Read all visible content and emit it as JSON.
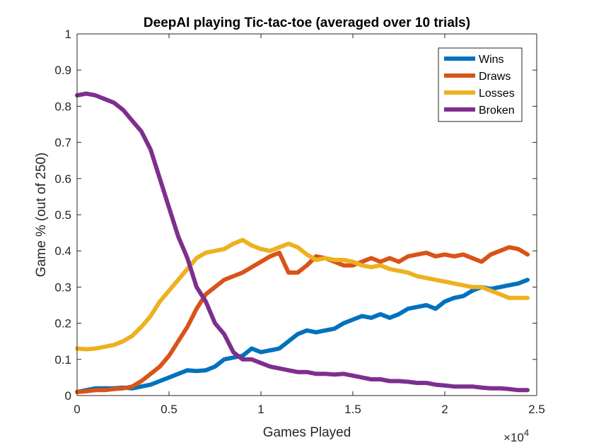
{
  "chart_data": {
    "type": "line",
    "title": "DeepAI playing Tic-tac-toe (averaged over 10 trials)",
    "xlabel": "Games Played",
    "ylabel": "Game % (out of 250)",
    "x_exponent_label": "×10",
    "x_exponent_power": "4",
    "xlim": [
      0,
      25000
    ],
    "ylim": [
      0,
      1
    ],
    "xticks": [
      0,
      5000,
      10000,
      15000,
      20000,
      25000
    ],
    "xtick_labels": [
      "0",
      "0.5",
      "1",
      "1.5",
      "2",
      "2.5"
    ],
    "yticks": [
      0,
      0.1,
      0.2,
      0.3,
      0.4,
      0.5,
      0.6,
      0.7,
      0.8,
      0.9,
      1
    ],
    "ytick_labels": [
      "0",
      "0.1",
      "0.2",
      "0.3",
      "0.4",
      "0.5",
      "0.6",
      "0.7",
      "0.8",
      "0.9",
      "1"
    ],
    "grid": false,
    "legend_position": "top-right",
    "x": [
      0,
      500,
      1000,
      1500,
      2000,
      2500,
      3000,
      3500,
      4000,
      4500,
      5000,
      5500,
      6000,
      6500,
      7000,
      7500,
      8000,
      8500,
      9000,
      9500,
      10000,
      10500,
      11000,
      11500,
      12000,
      12500,
      13000,
      13500,
      14000,
      14500,
      15000,
      15500,
      16000,
      16500,
      17000,
      17500,
      18000,
      18500,
      19000,
      19500,
      20000,
      20500,
      21000,
      21500,
      22000,
      22500,
      23000,
      23500,
      24000,
      24500
    ],
    "series": [
      {
        "name": "Wins",
        "color": "#0072BD",
        "values": [
          0.01,
          0.015,
          0.02,
          0.02,
          0.02,
          0.022,
          0.02,
          0.025,
          0.03,
          0.04,
          0.05,
          0.06,
          0.07,
          0.068,
          0.07,
          0.08,
          0.1,
          0.105,
          0.11,
          0.13,
          0.12,
          0.125,
          0.13,
          0.15,
          0.17,
          0.18,
          0.175,
          0.18,
          0.185,
          0.2,
          0.21,
          0.22,
          0.215,
          0.225,
          0.215,
          0.225,
          0.24,
          0.245,
          0.25,
          0.24,
          0.26,
          0.27,
          0.275,
          0.29,
          0.3,
          0.295,
          0.3,
          0.305,
          0.31,
          0.32
        ]
      },
      {
        "name": "Draws",
        "color": "#D95319",
        "values": [
          0.01,
          0.012,
          0.015,
          0.015,
          0.018,
          0.02,
          0.025,
          0.04,
          0.06,
          0.08,
          0.11,
          0.15,
          0.19,
          0.24,
          0.28,
          0.3,
          0.32,
          0.33,
          0.34,
          0.355,
          0.37,
          0.385,
          0.395,
          0.34,
          0.34,
          0.36,
          0.385,
          0.38,
          0.37,
          0.36,
          0.36,
          0.37,
          0.38,
          0.37,
          0.38,
          0.37,
          0.385,
          0.39,
          0.395,
          0.385,
          0.39,
          0.385,
          0.39,
          0.38,
          0.37,
          0.39,
          0.4,
          0.41,
          0.405,
          0.39
        ]
      },
      {
        "name": "Losses",
        "color": "#EDB120",
        "values": [
          0.13,
          0.128,
          0.13,
          0.135,
          0.14,
          0.15,
          0.165,
          0.19,
          0.22,
          0.26,
          0.29,
          0.32,
          0.35,
          0.38,
          0.395,
          0.4,
          0.405,
          0.42,
          0.43,
          0.415,
          0.405,
          0.4,
          0.41,
          0.42,
          0.41,
          0.39,
          0.375,
          0.38,
          0.375,
          0.375,
          0.37,
          0.36,
          0.355,
          0.36,
          0.35,
          0.345,
          0.34,
          0.33,
          0.325,
          0.32,
          0.315,
          0.31,
          0.305,
          0.3,
          0.3,
          0.29,
          0.28,
          0.27,
          0.27,
          0.27
        ]
      },
      {
        "name": "Broken",
        "color": "#7E2F8E",
        "values": [
          0.83,
          0.835,
          0.83,
          0.82,
          0.81,
          0.79,
          0.76,
          0.73,
          0.68,
          0.6,
          0.52,
          0.44,
          0.38,
          0.3,
          0.26,
          0.2,
          0.17,
          0.12,
          0.1,
          0.1,
          0.09,
          0.08,
          0.075,
          0.07,
          0.065,
          0.065,
          0.06,
          0.06,
          0.058,
          0.06,
          0.055,
          0.05,
          0.045,
          0.045,
          0.04,
          0.04,
          0.038,
          0.035,
          0.035,
          0.03,
          0.028,
          0.025,
          0.025,
          0.025,
          0.022,
          0.02,
          0.02,
          0.018,
          0.015,
          0.015
        ]
      }
    ]
  }
}
